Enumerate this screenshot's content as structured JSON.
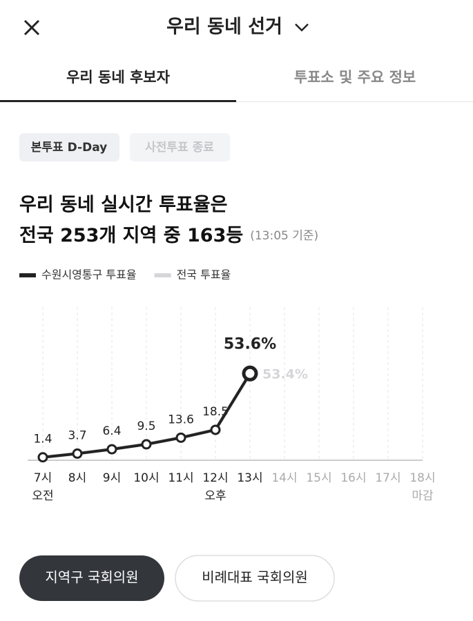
{
  "header": {
    "title": "우리 동네 선거"
  },
  "tabs": [
    "우리 동네 후보자",
    "투표소 및 주요 정보"
  ],
  "chips": [
    "본투표 D-Day",
    "사전투표 종료"
  ],
  "headline": {
    "line1": "우리 동네 실시간 투표율은",
    "line2": "전국 253개 지역 중 163등",
    "note": "(13:05 기준)"
  },
  "chart_data": {
    "type": "line",
    "categories": [
      "7시",
      "8시",
      "9시",
      "10시",
      "11시",
      "12시",
      "13시",
      "14시",
      "15시",
      "16시",
      "17시",
      "18시"
    ],
    "sublabels": [
      "오전",
      null,
      null,
      null,
      null,
      "오후",
      null,
      null,
      null,
      null,
      null,
      "마감"
    ],
    "series": [
      {
        "name": "수원시영통구 투표율",
        "color": "#222222",
        "values": [
          1.4,
          3.7,
          6.4,
          9.5,
          13.6,
          18.5,
          53.6,
          null,
          null,
          null,
          null,
          null
        ],
        "value_labels": [
          "1.4",
          "3.7",
          "6.4",
          "9.5",
          "13.6",
          "18.5",
          "53.6%",
          null,
          null,
          null,
          null,
          null
        ]
      },
      {
        "name": "전국 투표율",
        "color": "#d6d6da",
        "values": [
          1.4,
          3.7,
          6.5,
          9.6,
          13.7,
          18.6,
          53.4,
          null,
          null,
          null,
          null,
          null
        ],
        "value_labels": [
          null,
          null,
          null,
          null,
          null,
          null,
          "53.4%",
          null,
          null,
          null,
          null,
          null
        ]
      }
    ],
    "ylim": [
      0,
      95
    ],
    "grid": true
  },
  "buttons": [
    "지역구 국회의원",
    "비례대표 국회의원"
  ]
}
